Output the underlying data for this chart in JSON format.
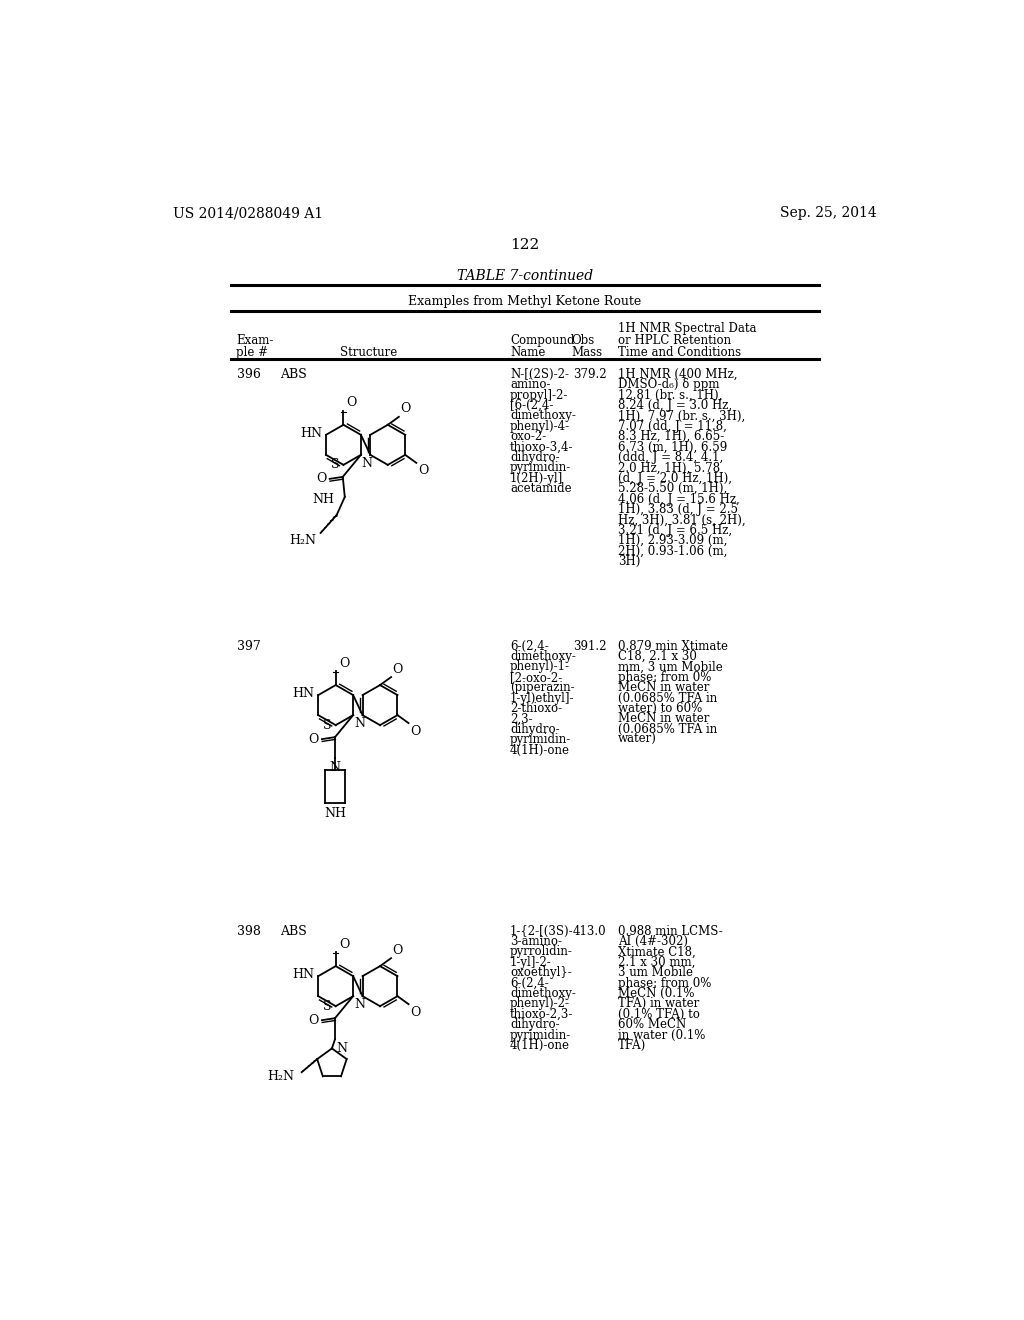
{
  "background_color": "#ffffff",
  "header_left": "US 2014/0288049 A1",
  "header_right": "Sep. 25, 2014",
  "page_number": "122",
  "table_title": "TABLE 7-continued",
  "table_subtitle": "Examples from Methyl Ketone Route",
  "rows": [
    {
      "example_num": "396",
      "abs_label": "ABS",
      "compound_name": "N-[(2S)-2-\namino-\npropyl]-2-\n[6-(2,4-\ndimethoxy-\nphenyl)-4-\noxo-2-\nthioxo-3,4-\ndihydro-\npyrimidin-\n1(2H)-yl]\nacetamide",
      "obs_mass": "379.2",
      "nmr_data": "1H NMR (400 MHz,\nDMSO-d₆) δ ppm\n12.81 (br. s., 1H),\n8.24 (d, J = 3.0 Hz,\n1H), 7.97 (br. s., 3H),\n7.07 (dd, J = 11.8,\n8.3 Hz, 1H), 6.65-\n6.73 (m, 1H), 6.59\n(ddd, J = 8.4, 4.1,\n2.0 Hz, 1H), 5.78\n(d, J = 2.0 Hz, 1H),\n5.28-5.50 (m, 1H),\n4.06 (d, J = 15.6 Hz,\n1H), 3.83 (d, J = 2.5\nHz, 3H), 3.81 (s, 2H),\n3.21 (d, J = 6.5 Hz,\n1H), 2.93-3.09 (m,\n2H), 0.93-1.06 (m,\n3H)"
    },
    {
      "example_num": "397",
      "abs_label": "",
      "compound_name": "6-(2,4-\ndimethoxy-\nphenyl)-1-\n[2-oxo-2-\n(piperazin-\n1-yl)ethyl]-\n2-thioxo-\n2,3-\ndihydro-\npyrimidin-\n4(1H)-one",
      "obs_mass": "391.2",
      "nmr_data": "0.879 min Xtimate\nC18, 2.1 x 30\nmm, 3 um Mobile\nphase: from 0%\nMeCN in water\n(0.0685% TFA in\nwater) to 60%\nMeCN in water\n(0.0685% TFA in\nwater)"
    },
    {
      "example_num": "398",
      "abs_label": "ABS",
      "compound_name": "1-{2-[(3S)-\n3-amino-\npyrrolidin-\n1-yl]-2-\noxoethyl}-\n6-(2,4-\ndimethoxy-\nphenyl)-2-\nthioxo-2,3-\ndihydro-\npyrimidin-\n4(1H)-one",
      "obs_mass": "413.0",
      "nmr_data": "0.988 min LCMS-\nAI (4#-302)\nXtimate C18,\n2.1 x 30 mm,\n3 um Mobile\nphase: from 0%\nMeCN (0.1%\nTFA) in water\n(0.1% TFA) to\n60% MeCN\nin water (0.1%\nTFA)"
    }
  ]
}
